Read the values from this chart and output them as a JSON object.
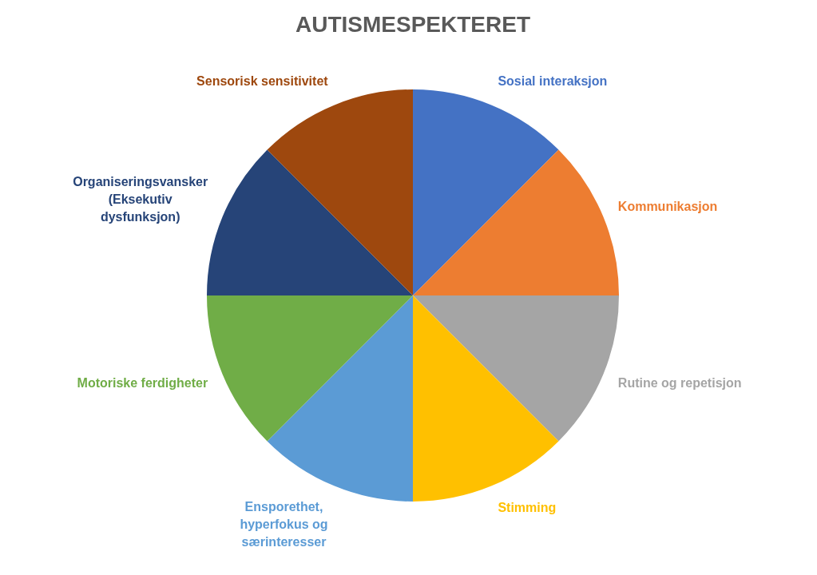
{
  "chart_data": {
    "type": "pie",
    "title": "AUTISMESPEKTERET",
    "categories": [
      "Sosial interaksjon",
      "Kommunikasjon",
      "Rutine og repetisjon",
      "Stimming",
      "Ensporethet, hyperfokus og særinteresser",
      "Motoriske ferdigheter",
      "Organiseringsvansker (Eksekutiv dysfunksjon)",
      "Sensorisk sensitivitet"
    ],
    "values": [
      12.5,
      12.5,
      12.5,
      12.5,
      12.5,
      12.5,
      12.5,
      12.5
    ],
    "colors": [
      "#4472c4",
      "#ed7d31",
      "#a5a5a5",
      "#ffc000",
      "#5b9bd5",
      "#70ad47",
      "#264478",
      "#9e480e"
    ]
  }
}
